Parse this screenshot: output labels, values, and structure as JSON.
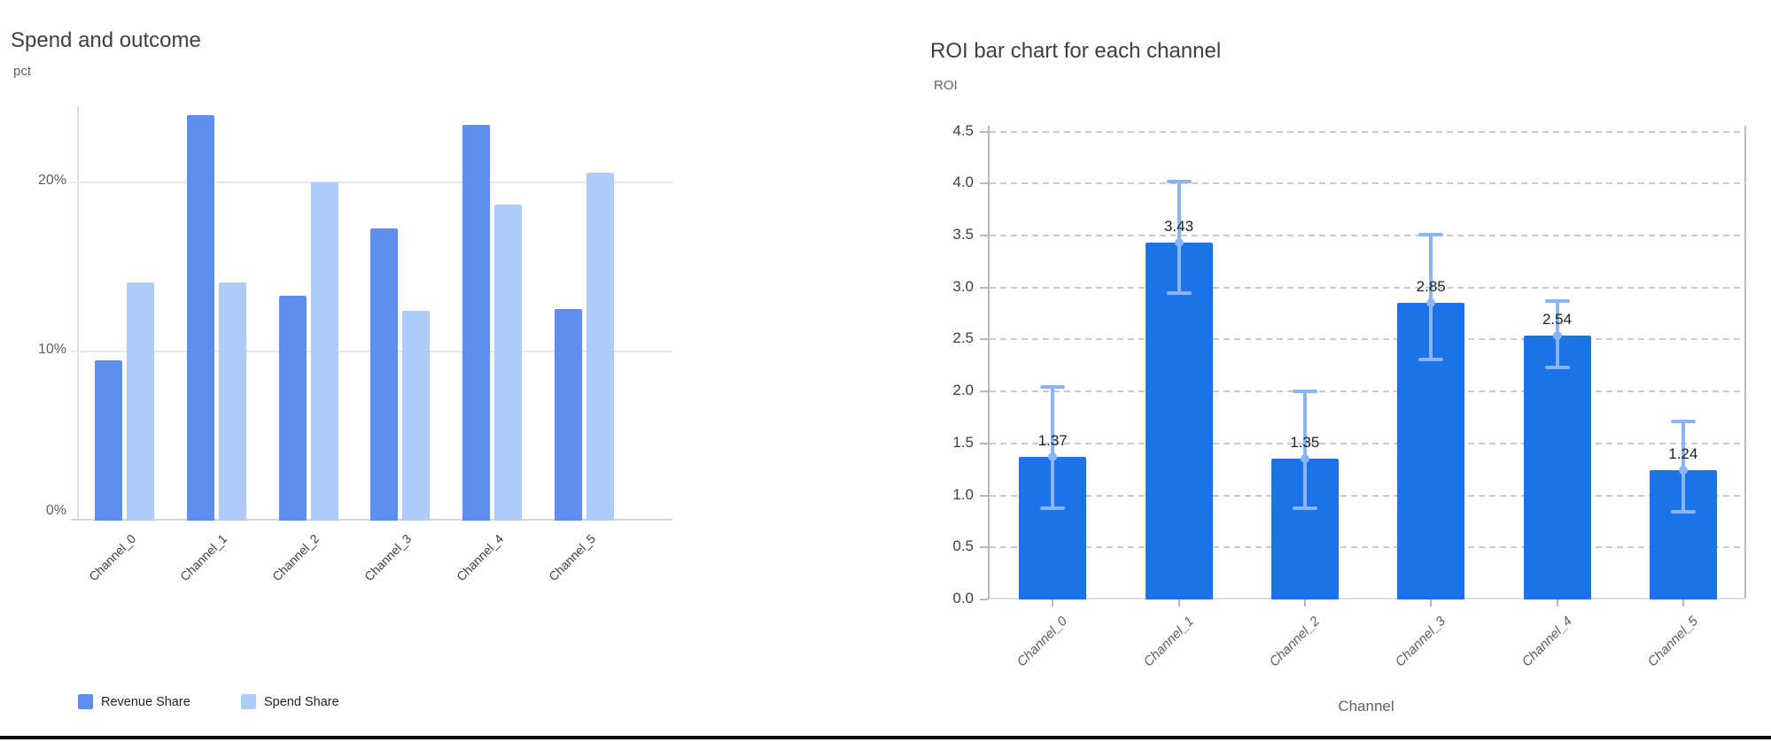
{
  "page": {
    "bottom_rule_color": "#0b0b0d"
  },
  "chart_data": [
    {
      "id": "spend-and-outcome",
      "type": "bar",
      "title": "Spend and outcome",
      "ylabel": "pct",
      "xlabel": "",
      "categories": [
        "Channel_0",
        "Channel_1",
        "Channel_2",
        "Channel_3",
        "Channel_4",
        "Channel_5"
      ],
      "series": [
        {
          "name": "Revenue Share",
          "color": "#5e8ff0",
          "values": [
            9.5,
            24.0,
            13.3,
            17.3,
            23.4,
            12.5
          ]
        },
        {
          "name": "Spend Share",
          "color": "#aecbfa",
          "values": [
            14.1,
            14.1,
            20.0,
            12.4,
            18.7,
            20.6
          ]
        }
      ],
      "ylim": [
        0,
        24.5
      ],
      "yticks": [
        0,
        10,
        20
      ],
      "ytick_labels": [
        "0%",
        "10%",
        "20%"
      ],
      "grid": "solid",
      "legend_position": "bottom-left"
    },
    {
      "id": "roi-per-channel",
      "type": "bar",
      "title": "ROI bar chart for each channel",
      "ylabel": "ROI",
      "xlabel": "Channel",
      "categories": [
        "Channel_0",
        "Channel_1",
        "Channel_2",
        "Channel_3",
        "Channel_4",
        "Channel_5"
      ],
      "series": [
        {
          "name": "ROI",
          "color": "#1a73e8",
          "values": [
            1.37,
            3.43,
            1.35,
            2.85,
            2.54,
            1.24
          ]
        }
      ],
      "value_labels": [
        "1.37",
        "3.43",
        "1.35",
        "2.85",
        "2.54",
        "1.24"
      ],
      "error_low": [
        0.88,
        2.95,
        0.88,
        2.31,
        2.23,
        0.84
      ],
      "error_high": [
        2.04,
        4.02,
        2.0,
        3.51,
        2.87,
        1.71
      ],
      "error_color": "#8ab4f8",
      "ylim": [
        0,
        4.5
      ],
      "yticks": [
        0,
        0.5,
        1,
        1.5,
        2,
        2.5,
        3,
        3.5,
        4,
        4.5
      ],
      "ytick_labels": [
        "0.0",
        "0.5",
        "1.0",
        "1.5",
        "2.0",
        "2.5",
        "3.0",
        "3.5",
        "4.0",
        "4.5"
      ],
      "grid": "dashed",
      "legend_position": "none"
    }
  ]
}
